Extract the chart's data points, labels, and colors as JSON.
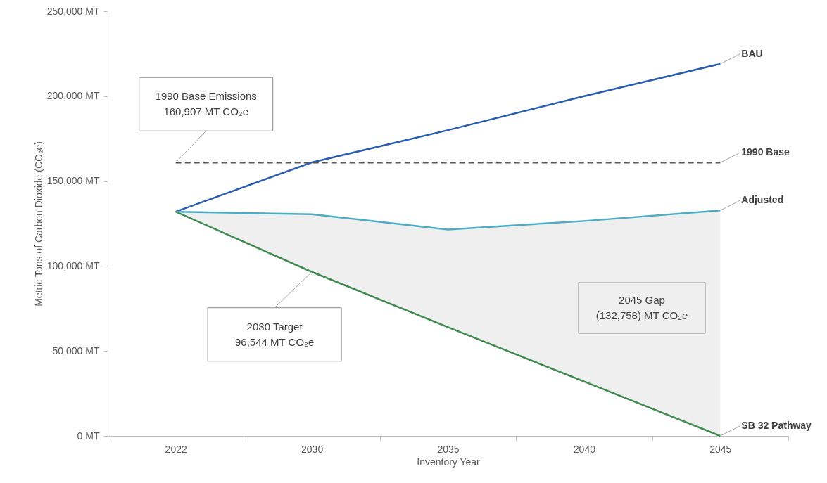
{
  "chart_data": {
    "type": "line",
    "xlabel": "Inventory Year",
    "ylabel": "Metric Tons of Carbon Dioxide (CO₂e)",
    "categories": [
      "2022",
      "2030",
      "2035",
      "2040",
      "2045"
    ],
    "series": [
      {
        "name": "BAU",
        "color": "#2a5db0",
        "values": [
          132000,
          161000,
          180000,
          200000,
          219000
        ]
      },
      {
        "name": "1990 Base",
        "color": "#595959",
        "line_style": "dashed",
        "values": [
          160907,
          160907,
          160907,
          160907,
          160907
        ]
      },
      {
        "name": "Adjusted",
        "color": "#4bacc6",
        "values": [
          132000,
          130500,
          121500,
          126500,
          132758
        ],
        "lower": [
          132000,
          96544,
          64000,
          32000,
          0
        ],
        "upper": [
          132000,
          130500,
          121500,
          126500,
          132758
        ]
      },
      {
        "name": "SB 32 Pathway",
        "color": "#3e8a4f",
        "values": [
          132000,
          96544,
          64000,
          32000,
          0
        ]
      }
    ],
    "ylim": [
      0,
      250000
    ],
    "yticks": [
      {
        "value": 0,
        "label": "0 MT"
      },
      {
        "value": 50000,
        "label": "50,000 MT"
      },
      {
        "value": 100000,
        "label": "100,000 MT"
      },
      {
        "value": 150000,
        "label": "150,000 MT"
      },
      {
        "value": 200000,
        "label": "200,000 MT"
      },
      {
        "value": 250000,
        "label": "250,000 MT"
      }
    ],
    "annotations": [
      {
        "text": "1990 Base Emissions\n160,907 MT CO₂e",
        "x": "2022",
        "y": 160907
      },
      {
        "text": "2030 Target\n96,544 MT CO₂e",
        "x": "2030",
        "y": 96544
      },
      "2045 Gap\n(132,758) MT CO₂e"
    ],
    "grid": false,
    "marker": "none"
  }
}
